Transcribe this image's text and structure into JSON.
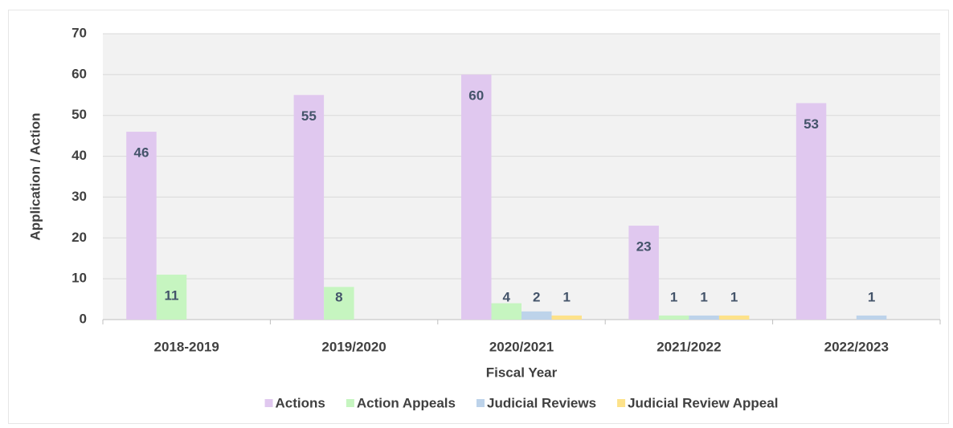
{
  "chart_data": {
    "type": "bar",
    "x_label": "Fiscal Year",
    "y_label": "Application / Action",
    "categories": [
      "2018-2019",
      "2019/2020",
      "2020/2021",
      "2021/2022",
      "2022/2023"
    ],
    "series": [
      {
        "name": "Actions",
        "color": "#e0c8ef",
        "values": [
          46,
          55,
          60,
          23,
          53
        ]
      },
      {
        "name": "Action Appeals",
        "color": "#c6f5c0",
        "values": [
          11,
          8,
          4,
          1,
          null
        ]
      },
      {
        "name": "Judicial Reviews",
        "color": "#bdd3ea",
        "values": [
          null,
          null,
          2,
          1,
          1
        ]
      },
      {
        "name": "Judicial Review Appeal",
        "color": "#fde28a",
        "values": [
          null,
          null,
          1,
          1,
          null
        ]
      }
    ],
    "ylim": [
      0,
      70
    ],
    "yticks": [
      0,
      10,
      20,
      30,
      40,
      50,
      60,
      70
    ],
    "grid": true,
    "legend": "bottom"
  }
}
